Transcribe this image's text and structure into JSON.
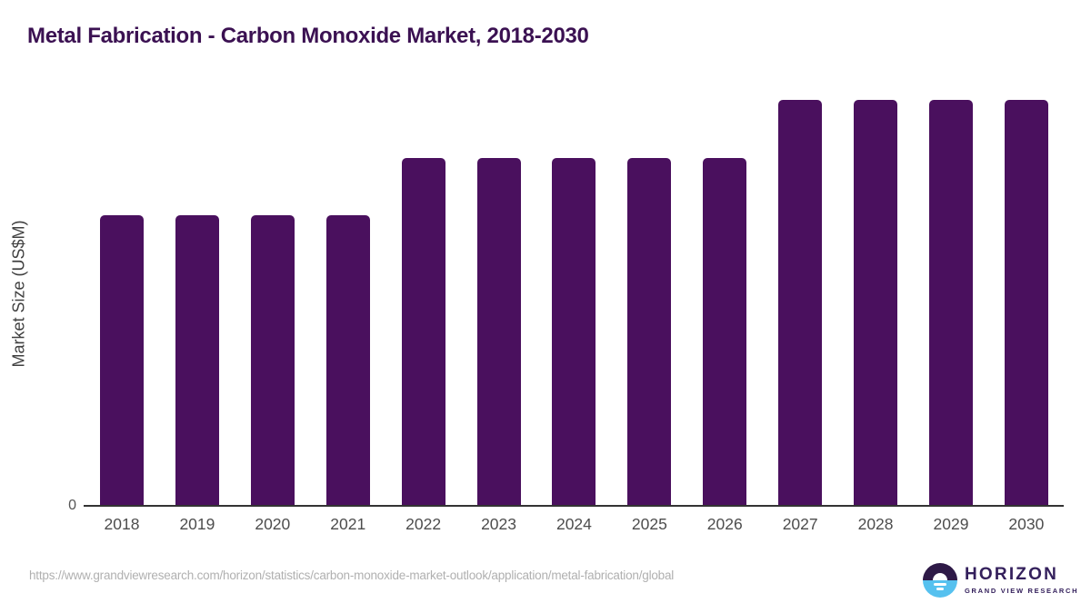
{
  "title": "Metal Fabrication - Carbon Monoxide Market, 2018-2030",
  "axis": {
    "ylabel": "Market Size (US$M)",
    "zero_label": "0"
  },
  "chart_data": {
    "type": "bar",
    "title": "Metal Fabrication - Carbon Monoxide Market, 2018-2030",
    "categories": [
      "2018",
      "2019",
      "2020",
      "2021",
      "2022",
      "2023",
      "2024",
      "2025",
      "2026",
      "2027",
      "2028",
      "2029",
      "2030"
    ],
    "values": [
      71.5,
      71.5,
      71.5,
      71.5,
      85.7,
      85.7,
      85.7,
      85.7,
      85.7,
      100,
      100,
      100,
      100
    ],
    "values_unit": "relative height, % of tallest bar (y-axis shows no numeric ticks except 0)",
    "xlabel": "",
    "ylabel": "Market Size (US$M)",
    "y_axis_ticks": [
      "0"
    ],
    "ylim": [
      0,
      100
    ],
    "grid": false,
    "legend": false,
    "bar_color": "#4a105e"
  },
  "footer": {
    "source_url": "https://www.grandviewresearch.com/horizon/statistics/carbon-monoxide-market-outlook/application/metal-fabrication/global"
  },
  "logo": {
    "brand": "HORIZON",
    "sub_brand": "GRAND VIEW RESEARCH"
  },
  "colors": {
    "title_text": "#3b1152",
    "bar_fill": "#4a105e",
    "axis_line": "#333333",
    "tick_label": "#4d4d4d",
    "source_url_text": "#b0b0b0",
    "logo_purple": "#2e1a47",
    "logo_blue": "#56c1ef"
  }
}
